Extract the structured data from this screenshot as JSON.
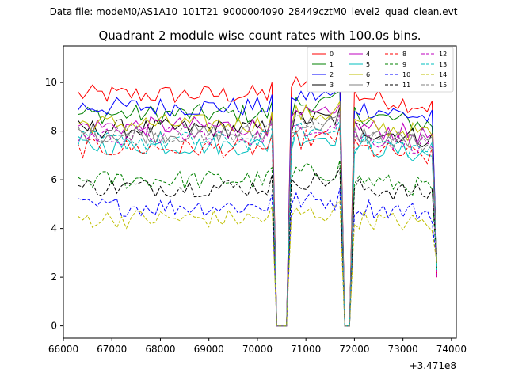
{
  "header": {
    "data_file": "Data file: modeM0/AS1A10_101T21_9000004090_28449cztM0_level2_quad_clean.evt"
  },
  "chart_data": {
    "type": "line",
    "title": "Quadrant 2 module wise count rates with 100.0s bins.",
    "xlabel": "",
    "ylabel": "",
    "x_offset_label": "+3.471e8",
    "xlim": [
      66000,
      74100
    ],
    "ylim": [
      -0.5,
      11.5
    ],
    "xticks": [
      66000,
      67000,
      68000,
      69000,
      70000,
      71000,
      72000,
      73000,
      74000
    ],
    "xtick_labels": [
      "66000",
      "67000",
      "68000",
      "69000",
      "70000",
      "71000",
      "72000",
      "73000",
      "74000"
    ],
    "yticks": [
      0,
      2,
      4,
      6,
      8,
      10
    ],
    "ytick_labels": [
      "0",
      "2",
      "4",
      "6",
      "8",
      "10"
    ],
    "legend_position": "top-right",
    "series": [
      {
        "name": "0",
        "color": "#ff0000",
        "dash": "solid",
        "base": 9.5
      },
      {
        "name": "1",
        "color": "#008000",
        "dash": "solid",
        "base": 8.7
      },
      {
        "name": "2",
        "color": "#0000ff",
        "dash": "solid",
        "base": 9.0
      },
      {
        "name": "3",
        "color": "#000000",
        "dash": "solid",
        "base": 8.1
      },
      {
        "name": "4",
        "color": "#bf00bf",
        "dash": "solid",
        "base": 8.2
      },
      {
        "name": "5",
        "color": "#00bfbf",
        "dash": "solid",
        "base": 7.4
      },
      {
        "name": "6",
        "color": "#bfbf00",
        "dash": "solid",
        "base": 8.3
      },
      {
        "name": "7",
        "color": "#808080",
        "dash": "solid",
        "base": 7.9
      },
      {
        "name": "8",
        "color": "#ff0000",
        "dash": "dashed",
        "base": 7.3
      },
      {
        "name": "9",
        "color": "#008000",
        "dash": "dashed",
        "base": 6.0
      },
      {
        "name": "10",
        "color": "#0000ff",
        "dash": "dashed",
        "base": 4.9
      },
      {
        "name": "11",
        "color": "#000000",
        "dash": "dashed",
        "base": 5.7
      },
      {
        "name": "12",
        "color": "#bf00bf",
        "dash": "dashed",
        "base": 7.8
      },
      {
        "name": "13",
        "color": "#00bfbf",
        "dash": "dashed",
        "base": 7.6
      },
      {
        "name": "14",
        "color": "#bfbf00",
        "dash": "dashed",
        "base": 4.4
      },
      {
        "name": "15",
        "color": "#808080",
        "dash": "dashed",
        "base": 7.9
      }
    ],
    "time_bins": {
      "start": 66300,
      "end": 73700,
      "step": 100
    },
    "gaps": [
      [
        70400,
        70600
      ],
      [
        71800,
        71900
      ]
    ]
  }
}
